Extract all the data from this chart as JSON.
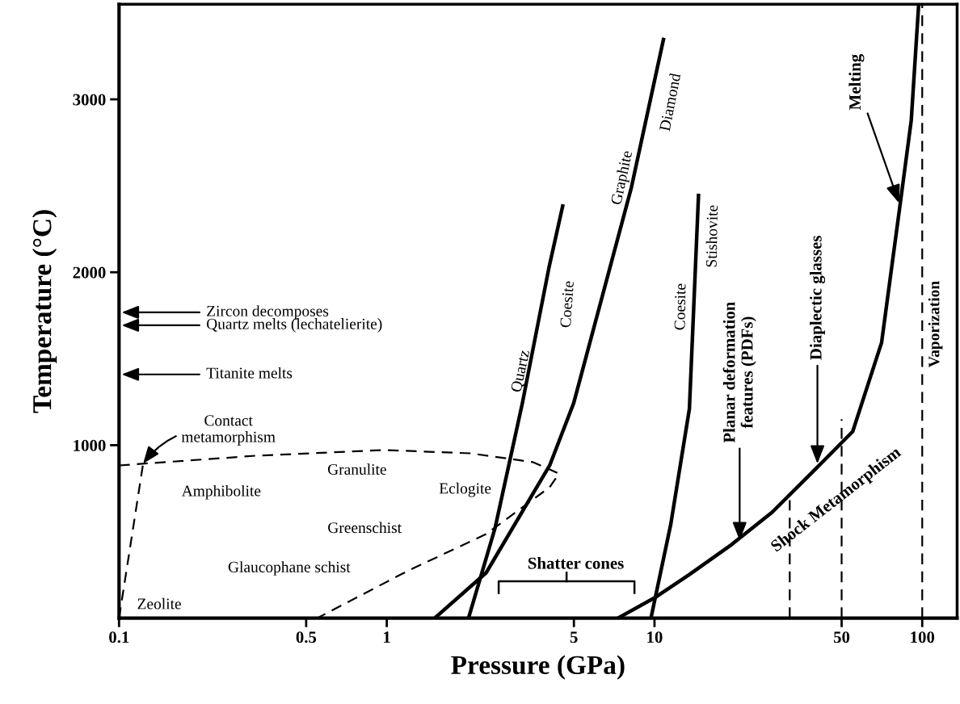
{
  "chart_data": {
    "type": "line",
    "xlabel": "Pressure (GPa)",
    "ylabel": "Temperature (°C)",
    "log": "x",
    "xlim": [
      0.1,
      135
    ],
    "ylim": [
      0,
      3550
    ],
    "xticks": [
      0.1,
      0.5,
      1,
      5,
      10,
      50,
      100
    ],
    "yticks": [
      1000,
      2000,
      3000
    ],
    "grid": false,
    "marker": "none",
    "series": [
      {
        "color": "#000000",
        "x": [
          2.02,
          2.54,
          3.21,
          4.03,
          4.54
        ],
        "values": [
          0,
          523,
          1243,
          2023,
          2383
        ]
      },
      {
        "color": "#000000",
        "x": [
          1.51,
          2.35,
          4.06,
          4.99,
          8.2,
          10.8
        ],
        "values": [
          0,
          262,
          883,
          1243,
          2491,
          3346
        ]
      },
      {
        "color": "#000000",
        "x": [
          9.7,
          11.5,
          13.5,
          14.6
        ],
        "values": [
          0,
          542,
          1210,
          2444
        ]
      },
      {
        "color": "#000000",
        "x": [
          7.3,
          10,
          13.5,
          19.4,
          27.5,
          39,
          55,
          70.5,
          83,
          91,
          97
        ],
        "values": [
          0,
          117,
          252,
          425,
          612,
          846,
          1079,
          1593,
          2411,
          2879,
          3550
        ]
      },
      {
        "color": "#000000",
        "line_style": "dashed",
        "x": [
          0.1,
          0.323,
          0.98,
          2.05,
          3.52,
          4.39,
          4.26,
          4.06,
          2.35,
          1.19,
          0.55
        ],
        "values": [
          883,
          939,
          972,
          953,
          902,
          836,
          804,
          757,
          486,
          271,
          0
        ]
      },
      {
        "color": "#000000",
        "line_style": "dashed",
        "x": [
          0.1,
          0.111,
          0.123
        ],
        "values": [
          0,
          449,
          893
        ]
      },
      {
        "color": "#000000",
        "line_style": "dashed",
        "x": [
          32,
          32
        ],
        "values": [
          0,
          682
        ]
      },
      {
        "color": "#000000",
        "line_style": "dashed",
        "x": [
          50,
          50
        ],
        "values": [
          0,
          1150
        ]
      }
    ],
    "ref_lines": [
      {
        "axis": "x",
        "value": 100,
        "label": "Vaporization",
        "line_style": "dashed",
        "color": "#000000"
      }
    ],
    "annotations": [
      "Zircon decomposes",
      "Quartz melts (lechatelierite)",
      "Titanite melts",
      {
        "text": "Contact\nmetamorphism",
        "x": 0.123,
        "y": 893
      },
      {
        "text": "Melting",
        "x": 82,
        "y": 2400
      },
      {
        "text": "Planar deformation\nfeatures (PDFs)",
        "x": 20.8,
        "y": 449
      },
      {
        "text": "Diaplectic glasses",
        "x": 40.6,
        "y": 893
      },
      "Quartz",
      "Coesite",
      "Graphite",
      "Diamond",
      "Coesite",
      "Stishovite",
      "Shock Metamorphism",
      "Granulite",
      "Amphibolite",
      "Eclogite",
      "Greenschist",
      "Glaucophane schist",
      "Zeolite",
      "Shatter cones"
    ]
  }
}
